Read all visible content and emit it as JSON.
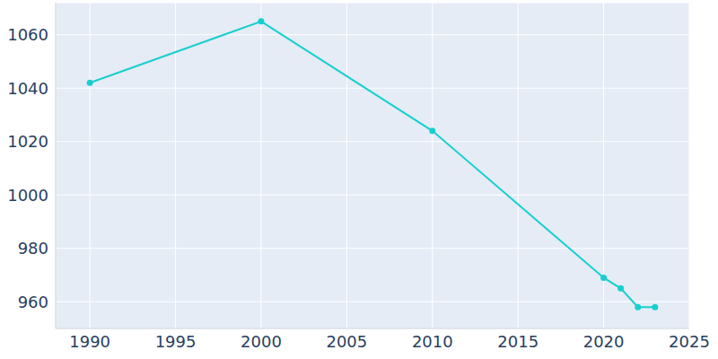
{
  "chart_data": {
    "type": "line",
    "x": [
      1990,
      2000,
      2010,
      2020,
      2021,
      2022,
      2023
    ],
    "values": [
      1042,
      1065,
      1024,
      969,
      965,
      958,
      958
    ],
    "color": "#17cfcf",
    "marker": "circle",
    "xlim": [
      1988,
      2025
    ],
    "xticks": [
      1990,
      1995,
      2000,
      2005,
      2010,
      2015,
      2020,
      2025
    ],
    "ylim": [
      950,
      1072
    ],
    "yticks": [
      960,
      980,
      1000,
      1020,
      1040,
      1060
    ],
    "grid": true
  }
}
